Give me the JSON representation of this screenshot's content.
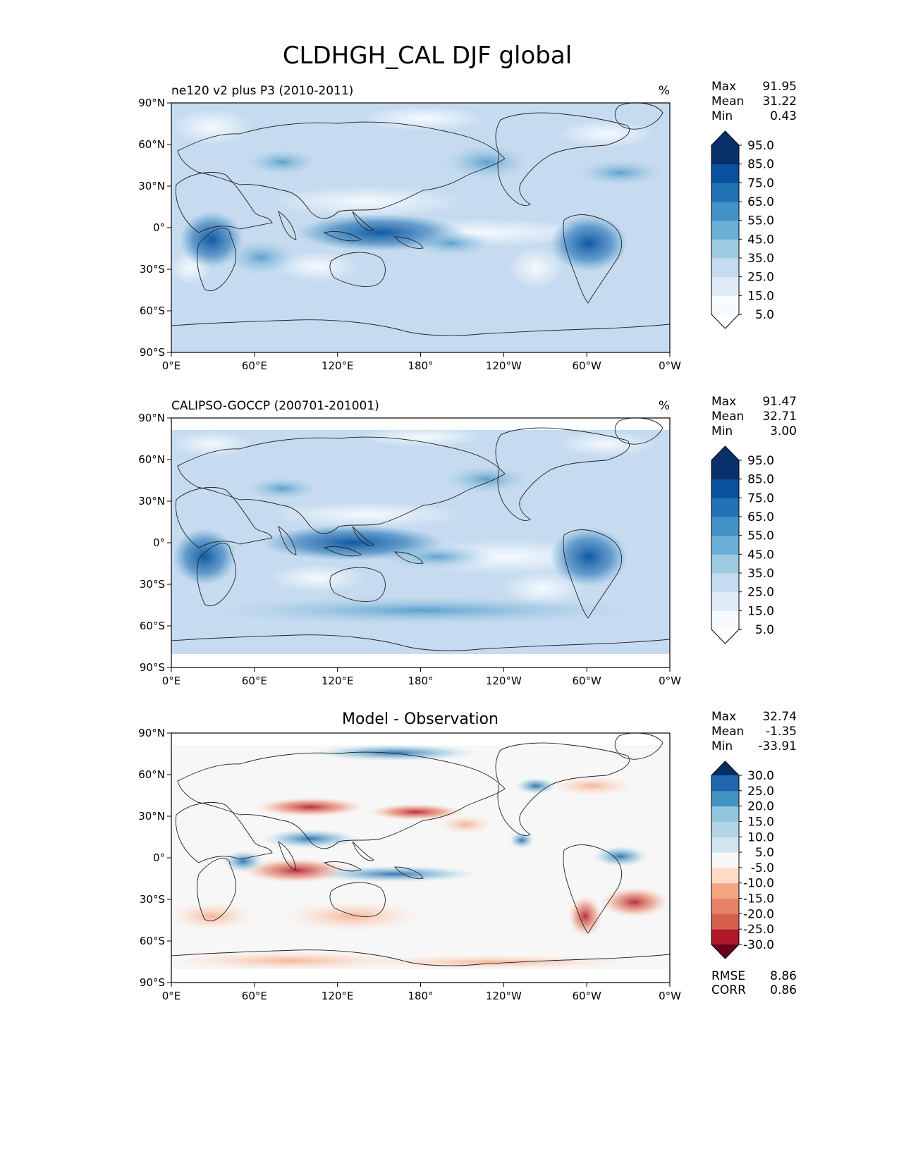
{
  "figure": {
    "title": "CLDHGH_CAL DJF global"
  },
  "chart_data": [
    {
      "type": "heatmap",
      "panel": "model",
      "title": "ne120 v2 plus P3 (2010-2011)",
      "units": "%",
      "stats": {
        "labels": [
          "Max",
          "Mean",
          "Min"
        ],
        "values": [
          "91.95",
          "31.22",
          "0.43"
        ]
      },
      "xlabel": "",
      "ylabel": "",
      "x_ticks": [
        "0°E",
        "60°E",
        "120°E",
        "180°",
        "120°W",
        "60°W",
        "0°W"
      ],
      "y_ticks": [
        "90°N",
        "60°N",
        "30°N",
        "0°",
        "30°S",
        "60°S",
        "90°S"
      ],
      "xlim": [
        0,
        360
      ],
      "ylim": [
        -90,
        90
      ],
      "colorbar": {
        "levels": [
          "95.0",
          "85.0",
          "75.0",
          "65.0",
          "55.0",
          "45.0",
          "35.0",
          "25.0",
          "15.0",
          "5.0"
        ],
        "colors": [
          "#f7fbff",
          "#deebf7",
          "#c6dbef",
          "#9ecae1",
          "#6baed6",
          "#4292c6",
          "#2171b5",
          "#08519c",
          "#08306b"
        ],
        "under": "#ffffff",
        "over": "#08306b"
      }
    },
    {
      "type": "heatmap",
      "panel": "observation",
      "title": "CALIPSO-GOCCP (200701-201001)",
      "units": "%",
      "stats": {
        "labels": [
          "Max",
          "Mean",
          "Min"
        ],
        "values": [
          "91.47",
          "32.71",
          "3.00"
        ]
      },
      "xlabel": "",
      "ylabel": "",
      "x_ticks": [
        "0°E",
        "60°E",
        "120°E",
        "180°",
        "120°W",
        "60°W",
        "0°W"
      ],
      "y_ticks": [
        "90°N",
        "60°N",
        "30°N",
        "0°",
        "30°S",
        "60°S",
        "90°S"
      ],
      "xlim": [
        0,
        360
      ],
      "ylim": [
        -90,
        90
      ],
      "colorbar": {
        "levels": [
          "95.0",
          "85.0",
          "75.0",
          "65.0",
          "55.0",
          "45.0",
          "35.0",
          "25.0",
          "15.0",
          "5.0"
        ],
        "colors": [
          "#f7fbff",
          "#deebf7",
          "#c6dbef",
          "#9ecae1",
          "#6baed6",
          "#4292c6",
          "#2171b5",
          "#08519c",
          "#08306b"
        ],
        "under": "#ffffff",
        "over": "#08306b"
      }
    },
    {
      "type": "heatmap",
      "panel": "difference",
      "title": "Model - Observation",
      "units": "",
      "stats": {
        "labels": [
          "Max",
          "Mean",
          "Min"
        ],
        "values": [
          "32.74",
          "-1.35",
          "-33.91"
        ]
      },
      "metrics": {
        "labels": [
          "RMSE",
          "CORR"
        ],
        "values": [
          "8.86",
          "0.86"
        ]
      },
      "xlabel": "",
      "ylabel": "",
      "x_ticks": [
        "0°E",
        "60°E",
        "120°E",
        "180°",
        "120°W",
        "60°W",
        "0°W"
      ],
      "y_ticks": [
        "90°N",
        "60°N",
        "30°N",
        "0°",
        "30°S",
        "60°S",
        "90°S"
      ],
      "xlim": [
        0,
        360
      ],
      "ylim": [
        -90,
        90
      ],
      "colorbar": {
        "levels": [
          "30.0",
          "25.0",
          "20.0",
          "15.0",
          "10.0",
          "5.0",
          "-5.0",
          "-10.0",
          "-15.0",
          "-20.0",
          "-25.0",
          "-30.0"
        ],
        "colors": [
          "#b2182b",
          "#d6604d",
          "#e58267",
          "#f4a582",
          "#fddbc7",
          "#f7f7f7",
          "#d1e5f0",
          "#b4d5e7",
          "#92c5de",
          "#4393c3",
          "#2166ac"
        ],
        "under": "#67001f",
        "over": "#053061"
      }
    }
  ]
}
